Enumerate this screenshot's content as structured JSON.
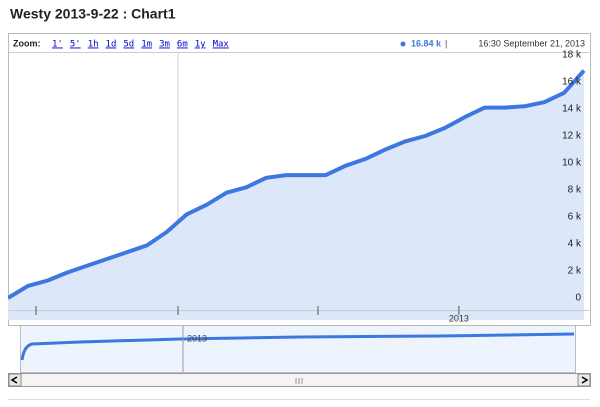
{
  "chart_data": {
    "type": "area",
    "title": "Westy 2013-9-22 : Chart1",
    "zoom_label": "Zoom:",
    "zoom_options": [
      "1'",
      "5'",
      "1h",
      "1d",
      "5d",
      "1m",
      "3m",
      "6m",
      "1y",
      "Max"
    ],
    "current_value": {
      "value": 16.84,
      "label": "16.84 k"
    },
    "current_time": "16:30 September 21, 2013",
    "categories": [
      null,
      null,
      null,
      null,
      null,
      null,
      null,
      null,
      null,
      null,
      null,
      null,
      null,
      null,
      null,
      null,
      null,
      null,
      null,
      null,
      null,
      null,
      null,
      null,
      null,
      null,
      null,
      null,
      null,
      null
    ],
    "values": [
      0,
      0.9,
      1.3,
      1.9,
      2.4,
      2.9,
      3.4,
      3.9,
      4.9,
      6.2,
      6.9,
      7.8,
      8.2,
      8.9,
      9.1,
      9.1,
      9.1,
      9.8,
      10.3,
      11.0,
      11.6,
      12.0,
      12.6,
      13.4,
      14.1,
      14.1,
      14.2,
      14.5,
      15.2,
      16.84
    ],
    "color": "#3d78e0",
    "fill": "#dde7fa",
    "xticks": [
      {
        "value": 22.7,
        "label": "2013"
      }
    ],
    "ylim": [
      -1.48,
      18.22
    ],
    "yticks": [
      {
        "value": 0,
        "label": "0"
      },
      {
        "value": 2,
        "label": "2 k"
      },
      {
        "value": 4,
        "label": "4 k"
      },
      {
        "value": 6,
        "label": "6 k"
      },
      {
        "value": 8,
        "label": "8 k"
      },
      {
        "value": 10,
        "label": "10 k"
      },
      {
        "value": 12,
        "label": "12 k"
      },
      {
        "value": 14,
        "label": "14 k"
      },
      {
        "value": 16,
        "label": "16 k"
      },
      {
        "value": 18,
        "label": "18 k"
      }
    ]
  }
}
